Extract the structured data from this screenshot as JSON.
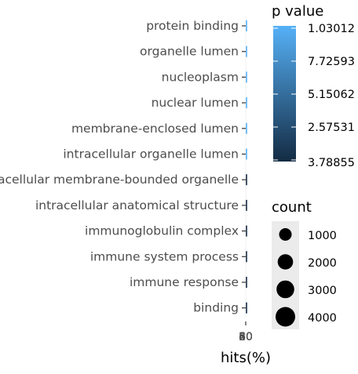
{
  "chart_data": {
    "type": "scatter",
    "categories": [
      "protein binding",
      "organelle lumen",
      "nucleoplasm",
      "nuclear lumen",
      "membrane-enclosed lumen",
      "intracellular organelle lumen",
      "intracellular membrane-bounded organelle",
      "intracellular anatomical structure",
      "immunoglobulin complex",
      "immune system process",
      "immune response",
      "binding"
    ],
    "xlabel": "hits(%)",
    "x_tick_labels": [
      "20",
      "40",
      "60",
      "80"
    ],
    "legend_color": {
      "title": "p value",
      "labels": [
        "1.03012",
        "7.72593",
        "5.15062",
        "2.57531",
        "3.78855"
      ],
      "color_high": "#56B1F7",
      "color_low": "#132B43"
    },
    "legend_size": {
      "title": "count",
      "labels": [
        "1000",
        "2000",
        "3000",
        "4000"
      ]
    }
  }
}
